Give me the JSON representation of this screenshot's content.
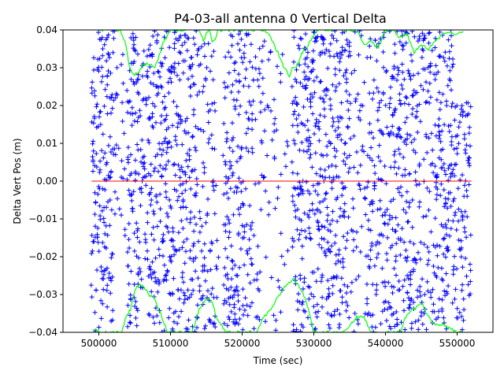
{
  "chart_data": {
    "type": "scatter",
    "title": "P4-03-all antenna 0 Vertical Delta",
    "xlabel": "Time (sec)",
    "ylabel": "Delta Vert Pos (m)",
    "xlim": [
      495000,
      555000
    ],
    "ylim": [
      -0.04,
      0.04
    ],
    "x_ticks": [
      500000,
      510000,
      520000,
      530000,
      540000,
      550000
    ],
    "x_tick_labels": [
      "500000",
      "510000",
      "520000",
      "530000",
      "540000",
      "550000"
    ],
    "y_ticks": [
      -0.04,
      -0.03,
      -0.02,
      -0.01,
      0.0,
      0.01,
      0.02,
      0.03,
      0.04
    ],
    "y_tick_labels": [
      "−0.04",
      "−0.03",
      "−0.02",
      "−0.01",
      "0.00",
      "0.01",
      "0.02",
      "0.03",
      "0.04"
    ],
    "grid": false,
    "legend": "none",
    "colors": {
      "scatter": "#0000ff",
      "envelope": "#00ff00",
      "zero_line": "#ff0000"
    },
    "zero_line": {
      "x": [
        499000,
        552000
      ],
      "y": 0.0
    },
    "scatter_density_bands": [
      {
        "x": [
          499000,
          502000
        ],
        "y": [
          -0.04,
          0.04
        ],
        "density": 1.0
      },
      {
        "x": [
          502000,
          504000
        ],
        "y": [
          -0.015,
          0.04
        ],
        "density": 0.6
      },
      {
        "x": [
          504000,
          505500
        ],
        "y": [
          -0.04,
          0.04
        ],
        "density": 1.0
      },
      {
        "x": [
          505500,
          507000
        ],
        "y": [
          -0.03,
          0.035
        ],
        "density": 0.85
      },
      {
        "x": [
          507000,
          510500
        ],
        "y": [
          -0.04,
          0.04
        ],
        "density": 1.0
      },
      {
        "x": [
          510500,
          513500
        ],
        "y": [
          -0.04,
          0.04
        ],
        "density": 0.95
      },
      {
        "x": [
          513500,
          516500
        ],
        "y": [
          -0.04,
          0.04
        ],
        "density": 0.8
      },
      {
        "x": [
          516500,
          517500
        ],
        "y": [
          -0.025,
          0.01
        ],
        "density": 0.25
      },
      {
        "x": [
          517500,
          520000
        ],
        "y": [
          -0.04,
          0.04
        ],
        "density": 1.0
      },
      {
        "x": [
          520000,
          521500
        ],
        "y": [
          -0.04,
          0.04
        ],
        "density": 0.9
      },
      {
        "x": [
          521500,
          525500
        ],
        "y": [
          -0.04,
          0.04
        ],
        "density": 0.6
      },
      {
        "x": [
          525500,
          527000
        ],
        "y": [
          -0.035,
          0.04
        ],
        "density": 0.3
      },
      {
        "x": [
          527000,
          535000
        ],
        "y": [
          -0.04,
          0.04
        ],
        "density": 1.0
      },
      {
        "x": [
          535000,
          537500
        ],
        "y": [
          -0.04,
          0.04
        ],
        "density": 0.65
      },
      {
        "x": [
          537500,
          541000
        ],
        "y": [
          -0.04,
          0.04
        ],
        "density": 0.9
      },
      {
        "x": [
          541000,
          544000
        ],
        "y": [
          -0.04,
          0.04
        ],
        "density": 1.0
      },
      {
        "x": [
          544000,
          547000
        ],
        "y": [
          -0.04,
          0.04
        ],
        "density": 0.9
      },
      {
        "x": [
          547000,
          549500
        ],
        "y": [
          -0.04,
          0.04
        ],
        "density": 1.0
      },
      {
        "x": [
          549500,
          552000
        ],
        "y": [
          -0.04,
          0.022
        ],
        "density": 0.85
      }
    ],
    "series": [
      {
        "color": "#00ff00",
        "x": [
          499200,
          500000,
          501000,
          502000,
          503000,
          503800,
          504200,
          504600,
          505000,
          505600,
          506200,
          507000,
          507800,
          508400,
          508800,
          509400,
          510000,
          511000,
          512000,
          513000,
          514000,
          514600,
          515000,
          515400,
          515800,
          516200,
          516600,
          517000,
          517600,
          518400,
          519000,
          519600,
          520000,
          521000,
          522000,
          523000,
          524000,
          525000,
          525600,
          526200,
          526600,
          527000,
          527400,
          528000,
          528600,
          529200,
          529800,
          530400,
          531000,
          532000,
          533000,
          534000,
          535000,
          536000,
          537000,
          538000,
          539000,
          540000,
          541000,
          542000,
          543000,
          544000,
          545000,
          546000,
          547000,
          548000,
          549000,
          550000,
          551000
        ],
        "y": [
          0.04,
          0.04,
          0.04,
          0.04,
          0.04,
          0.036,
          0.031,
          0.029,
          0.028,
          0.029,
          0.031,
          0.031,
          0.03,
          0.033,
          0.036,
          0.038,
          0.04,
          0.04,
          0.04,
          0.04,
          0.04,
          0.037,
          0.039,
          0.04,
          0.037,
          0.037,
          0.04,
          0.04,
          0.04,
          0.04,
          0.04,
          0.04,
          0.04,
          0.04,
          0.04,
          0.04,
          0.038,
          0.034,
          0.031,
          0.029,
          0.028,
          0.03,
          0.03,
          0.032,
          0.035,
          0.036,
          0.038,
          0.04,
          0.04,
          0.04,
          0.04,
          0.04,
          0.04,
          0.04,
          0.036,
          0.037,
          0.035,
          0.04,
          0.04,
          0.038,
          0.039,
          0.034,
          0.036,
          0.035,
          0.037,
          0.039,
          0.039,
          0.039,
          0.04
        ]
      },
      {
        "color": "#00ff00",
        "x": [
          499200,
          500000,
          501000,
          502000,
          502600,
          503200,
          503800,
          504400,
          505000,
          505600,
          506200,
          507000,
          507800,
          508400,
          509000,
          509600,
          510200,
          511000,
          512000,
          513000,
          514000,
          514600,
          515200,
          515800,
          516400,
          517000,
          517800,
          518600,
          519400,
          520000,
          521000,
          522000,
          523000,
          524000,
          524800,
          525600,
          526400,
          527200,
          528000,
          528800,
          529400,
          530000,
          531000,
          532000,
          533000,
          534000,
          535000,
          536000,
          537000,
          538000,
          539000,
          540000,
          541000,
          542000,
          543000,
          544000,
          545000,
          546000,
          547000,
          548000,
          549000,
          550000,
          551000
        ],
        "y": [
          -0.039,
          -0.04,
          -0.04,
          -0.04,
          -0.04,
          -0.04,
          -0.036,
          -0.034,
          -0.029,
          -0.027,
          -0.028,
          -0.03,
          -0.031,
          -0.034,
          -0.037,
          -0.04,
          -0.04,
          -0.04,
          -0.04,
          -0.04,
          -0.034,
          -0.032,
          -0.031,
          -0.032,
          -0.036,
          -0.038,
          -0.04,
          -0.04,
          -0.04,
          -0.04,
          -0.04,
          -0.04,
          -0.036,
          -0.034,
          -0.031,
          -0.029,
          -0.027,
          -0.026,
          -0.028,
          -0.031,
          -0.035,
          -0.04,
          -0.04,
          -0.04,
          -0.04,
          -0.04,
          -0.038,
          -0.036,
          -0.036,
          -0.04,
          -0.04,
          -0.04,
          -0.04,
          -0.04,
          -0.035,
          -0.034,
          -0.032,
          -0.036,
          -0.038,
          -0.038,
          -0.039,
          -0.04,
          -0.04
        ]
      }
    ]
  }
}
